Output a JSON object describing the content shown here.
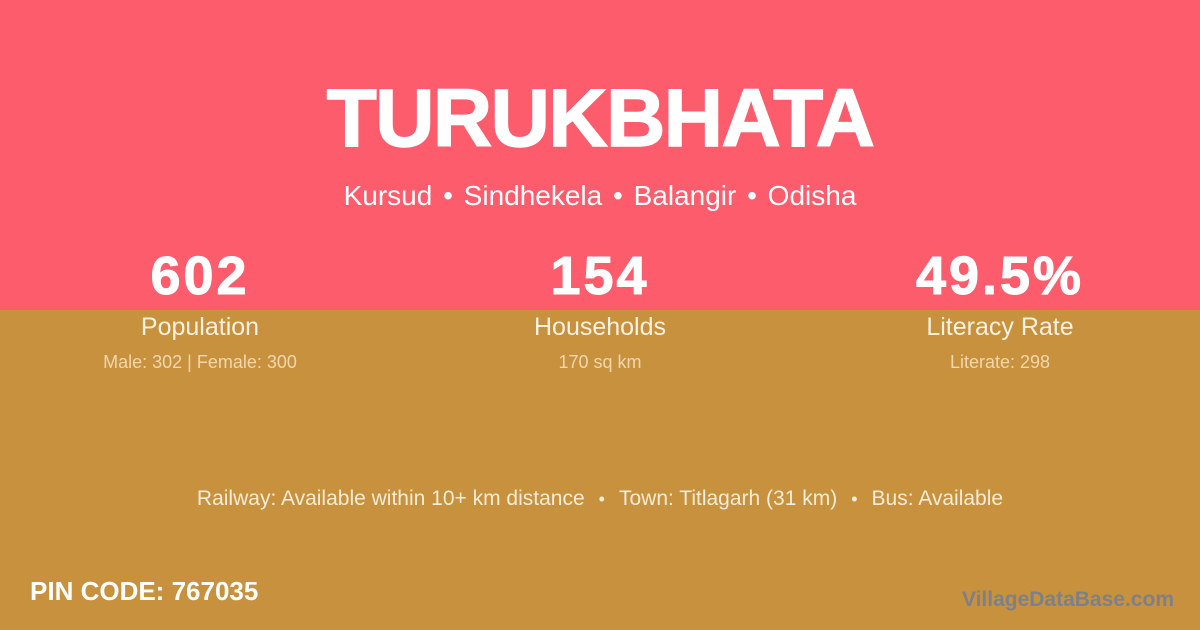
{
  "card": {
    "title": "TURUKBHATA",
    "breadcrumb": "Kursud • Sindhekela • Balangir • Odisha"
  },
  "stats": [
    {
      "value": "602",
      "label": "Population",
      "detail": "Male: 302 | Female: 300"
    },
    {
      "value": "154",
      "label": "Households",
      "detail": "170 sq km"
    },
    {
      "value": "49.5%",
      "label": "Literacy Rate",
      "detail": "Literate: 298"
    }
  ],
  "transport": {
    "railway": "Railway: Available within 10+ km distance",
    "town": "Town: Titlagarh (31 km)",
    "bus": "Bus: Available",
    "separator": "•"
  },
  "footer": {
    "pin_code": "PIN CODE: 767035",
    "watermark": "VillageDataBase.com"
  },
  "theme": {
    "header_color": "#FD5C6C",
    "body_color": "#C8913E",
    "text_color": "#FFFFFF",
    "muted_text_color": "#F3E3C2",
    "watermark_color": "#7D808A"
  }
}
